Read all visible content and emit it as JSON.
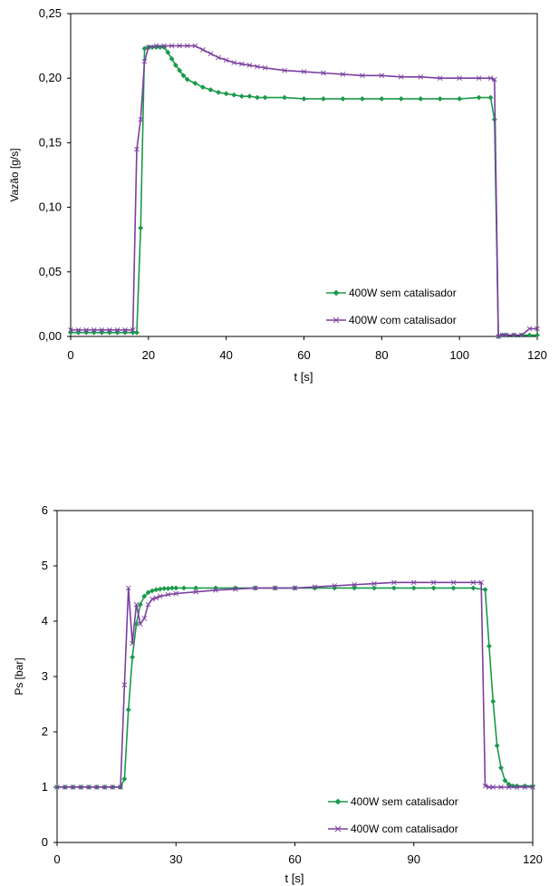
{
  "chart_data": [
    {
      "type": "line",
      "title": "",
      "xlabel": "t [s]",
      "ylabel": "Vazão [g/s]",
      "xlim": [
        0,
        120
      ],
      "ylim": [
        0,
        0.25
      ],
      "x_ticks": [
        0,
        20,
        40,
        60,
        80,
        100,
        120
      ],
      "y_ticks": [
        0,
        0.05,
        0.1,
        0.15,
        0.2,
        0.25
      ],
      "x_tick_labels": [
        "0",
        "20",
        "40",
        "60",
        "80",
        "100",
        "120"
      ],
      "y_tick_labels": [
        "0,00",
        "0,05",
        "0,10",
        "0,15",
        "0,20",
        "0,25"
      ],
      "grid": false,
      "legend_position": "bottom-right",
      "series": [
        {
          "name": "400W sem catalisador",
          "color": "#1a9a4a",
          "marker": "diamond",
          "x": [
            0,
            2,
            4,
            6,
            8,
            10,
            12,
            14,
            16,
            17,
            18,
            19,
            20,
            21,
            22,
            23,
            24,
            25,
            26,
            27,
            28,
            29,
            30,
            32,
            34,
            36,
            38,
            40,
            42,
            44,
            46,
            48,
            50,
            55,
            60,
            65,
            70,
            75,
            80,
            85,
            90,
            95,
            100,
            105,
            108,
            109,
            110,
            111,
            112,
            114,
            116,
            118,
            120
          ],
          "y": [
            0.003,
            0.003,
            0.003,
            0.003,
            0.003,
            0.003,
            0.003,
            0.003,
            0.003,
            0.003,
            0.084,
            0.223,
            0.224,
            0.224,
            0.224,
            0.224,
            0.224,
            0.22,
            0.215,
            0.21,
            0.206,
            0.202,
            0.199,
            0.196,
            0.193,
            0.191,
            0.189,
            0.188,
            0.187,
            0.186,
            0.186,
            0.185,
            0.185,
            0.185,
            0.184,
            0.184,
            0.184,
            0.184,
            0.184,
            0.184,
            0.184,
            0.184,
            0.184,
            0.185,
            0.185,
            0.168,
            0.0,
            0.001,
            0.001,
            0.001,
            0.001,
            0.001,
            0.001
          ]
        },
        {
          "name": "400W com catalisador",
          "color": "#7b3fa0",
          "marker": "x",
          "x": [
            0,
            2,
            4,
            6,
            8,
            10,
            12,
            14,
            16,
            17,
            18,
            19,
            20,
            22,
            24,
            26,
            28,
            30,
            32,
            34,
            36,
            38,
            40,
            42,
            44,
            46,
            48,
            50,
            55,
            60,
            65,
            70,
            75,
            80,
            85,
            90,
            95,
            100,
            105,
            108,
            109,
            110,
            111,
            112,
            114,
            116,
            118,
            120
          ],
          "y": [
            0.005,
            0.005,
            0.005,
            0.005,
            0.005,
            0.005,
            0.005,
            0.005,
            0.005,
            0.145,
            0.168,
            0.213,
            0.224,
            0.225,
            0.225,
            0.225,
            0.225,
            0.225,
            0.225,
            0.222,
            0.219,
            0.216,
            0.214,
            0.212,
            0.211,
            0.21,
            0.209,
            0.208,
            0.206,
            0.205,
            0.204,
            0.203,
            0.202,
            0.202,
            0.201,
            0.201,
            0.2,
            0.2,
            0.2,
            0.2,
            0.199,
            0.0,
            0.001,
            0.001,
            0.001,
            0.001,
            0.006,
            0.006
          ]
        }
      ]
    },
    {
      "type": "line",
      "title": "",
      "xlabel": "t [s]",
      "ylabel": "Ps [bar]",
      "xlim": [
        0,
        120
      ],
      "ylim": [
        0,
        6
      ],
      "x_ticks": [
        0,
        30,
        60,
        90,
        120
      ],
      "y_ticks": [
        0,
        1,
        2,
        3,
        4,
        5,
        6
      ],
      "x_tick_labels": [
        "0",
        "30",
        "60",
        "90",
        "120"
      ],
      "y_tick_labels": [
        "0",
        "1",
        "2",
        "3",
        "4",
        "5",
        "6"
      ],
      "grid": false,
      "legend_position": "bottom-right",
      "series": [
        {
          "name": "400W sem catalisador",
          "color": "#1a9a4a",
          "marker": "diamond",
          "x": [
            0,
            2,
            4,
            6,
            8,
            10,
            12,
            14,
            16,
            17,
            18,
            19,
            20,
            21,
            22,
            23,
            24,
            25,
            26,
            27,
            28,
            29,
            30,
            32,
            35,
            40,
            45,
            50,
            55,
            60,
            65,
            70,
            75,
            80,
            85,
            90,
            95,
            100,
            105,
            108,
            109,
            110,
            111,
            112,
            113,
            114,
            115,
            116,
            118,
            120
          ],
          "y": [
            1.0,
            1.0,
            1.0,
            1.0,
            1.0,
            1.0,
            1.0,
            1.0,
            1.0,
            1.15,
            2.4,
            3.35,
            3.95,
            4.3,
            4.45,
            4.52,
            4.55,
            4.57,
            4.58,
            4.59,
            4.59,
            4.6,
            4.6,
            4.6,
            4.6,
            4.6,
            4.6,
            4.6,
            4.6,
            4.6,
            4.6,
            4.6,
            4.6,
            4.6,
            4.6,
            4.6,
            4.6,
            4.6,
            4.6,
            4.57,
            3.55,
            2.55,
            1.75,
            1.35,
            1.12,
            1.05,
            1.02,
            1.02,
            1.02,
            1.02
          ]
        },
        {
          "name": "400W com catalisador",
          "color": "#7b3fa0",
          "marker": "x",
          "x": [
            0,
            2,
            4,
            6,
            8,
            10,
            12,
            14,
            16,
            17,
            18,
            19,
            20,
            21,
            22,
            23,
            24,
            25,
            26,
            28,
            30,
            35,
            40,
            45,
            50,
            55,
            60,
            65,
            70,
            75,
            80,
            85,
            90,
            95,
            100,
            105,
            107,
            108,
            109,
            110,
            112,
            114,
            116,
            118,
            120
          ],
          "y": [
            1.0,
            1.0,
            1.0,
            1.0,
            1.0,
            1.0,
            1.0,
            1.0,
            1.0,
            2.85,
            4.6,
            3.6,
            4.3,
            3.95,
            4.05,
            4.3,
            4.4,
            4.42,
            4.45,
            4.48,
            4.5,
            4.53,
            4.56,
            4.58,
            4.6,
            4.6,
            4.6,
            4.62,
            4.64,
            4.66,
            4.68,
            4.7,
            4.7,
            4.7,
            4.7,
            4.7,
            4.7,
            1.02,
            1.0,
            1.0,
            1.0,
            1.0,
            1.0,
            1.0,
            1.0
          ]
        }
      ]
    }
  ]
}
